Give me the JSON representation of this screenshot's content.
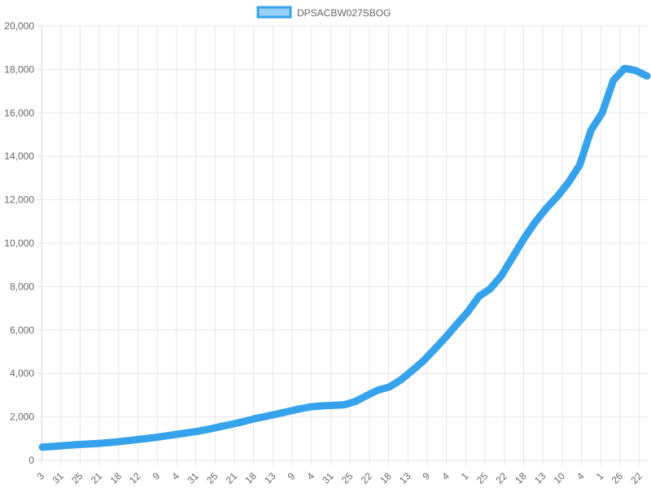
{
  "chart_data": {
    "type": "line",
    "title": "",
    "xlabel": "",
    "ylabel": "",
    "ylim": [
      0,
      20000
    ],
    "y_ticks": [
      0,
      2000,
      4000,
      6000,
      8000,
      10000,
      12000,
      14000,
      16000,
      18000,
      20000
    ],
    "y_tick_labels": [
      "0",
      "2,000",
      "4,000",
      "6,000",
      "8,000",
      "10,000",
      "12,000",
      "14,000",
      "16,000",
      "18,000",
      "20,000"
    ],
    "x_tick_labels": [
      "3",
      "31",
      "25",
      "21",
      "18",
      "12",
      "9",
      "4",
      "31",
      "25",
      "21",
      "18",
      "13",
      "9",
      "4",
      "31",
      "25",
      "22",
      "18",
      "13",
      "9",
      "4",
      "1",
      "25",
      "22",
      "18",
      "13",
      "10",
      "4",
      "1",
      "26",
      "22"
    ],
    "grid": true,
    "legend_position": "top",
    "series": [
      {
        "name": "DPSACBW027SBOG",
        "color": "#36a2eb",
        "fill_color": "#9ad0f5",
        "values": [
          610,
          640,
          680,
          720,
          750,
          780,
          820,
          870,
          930,
          990,
          1050,
          1120,
          1200,
          1270,
          1350,
          1450,
          1560,
          1670,
          1790,
          1920,
          2030,
          2140,
          2260,
          2370,
          2470,
          2510,
          2530,
          2560,
          2720,
          2990,
          3240,
          3380,
          3700,
          4120,
          4560,
          5100,
          5650,
          6250,
          6840,
          7550,
          7900,
          8500,
          9350,
          10200,
          10950,
          11600,
          12150,
          12800,
          13600,
          15200,
          16000,
          17500,
          18050,
          17950,
          17700
        ]
      }
    ]
  }
}
